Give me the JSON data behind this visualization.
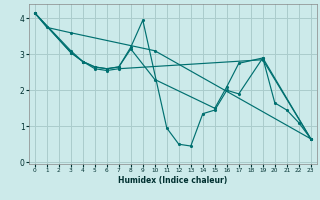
{
  "xlabel": "Humidex (Indice chaleur)",
  "background_color": "#cceaea",
  "grid_color": "#aacccc",
  "line_color": "#007070",
  "xlim": [
    -0.5,
    23.5
  ],
  "ylim": [
    -0.05,
    4.4
  ],
  "xticks": [
    0,
    1,
    2,
    3,
    4,
    5,
    6,
    7,
    8,
    9,
    10,
    11,
    12,
    13,
    14,
    15,
    16,
    17,
    18,
    19,
    20,
    21,
    22,
    23
  ],
  "yticks": [
    0,
    1,
    2,
    3,
    4
  ],
  "lines": [
    {
      "x": [
        0,
        1,
        3,
        10,
        23
      ],
      "y": [
        4.15,
        3.75,
        3.6,
        3.1,
        0.65
      ]
    },
    {
      "x": [
        0,
        3,
        4,
        5,
        6,
        7,
        8,
        9,
        11,
        12,
        13,
        14,
        15,
        16,
        17,
        19,
        20,
        21,
        22,
        23
      ],
      "y": [
        4.15,
        3.05,
        2.8,
        2.65,
        2.6,
        2.65,
        3.2,
        3.95,
        0.95,
        0.5,
        0.45,
        1.35,
        1.45,
        2.0,
        1.9,
        2.9,
        1.65,
        1.45,
        1.1,
        0.65
      ]
    },
    {
      "x": [
        0,
        3,
        4,
        5,
        6,
        7,
        8,
        10,
        15,
        16,
        17,
        19,
        23
      ],
      "y": [
        4.15,
        3.1,
        2.8,
        2.65,
        2.6,
        2.65,
        3.15,
        2.3,
        1.5,
        2.1,
        2.75,
        2.9,
        0.65
      ]
    },
    {
      "x": [
        0,
        3,
        4,
        5,
        6,
        7,
        19,
        23
      ],
      "y": [
        4.15,
        3.05,
        2.8,
        2.6,
        2.55,
        2.6,
        2.85,
        0.65
      ]
    }
  ]
}
